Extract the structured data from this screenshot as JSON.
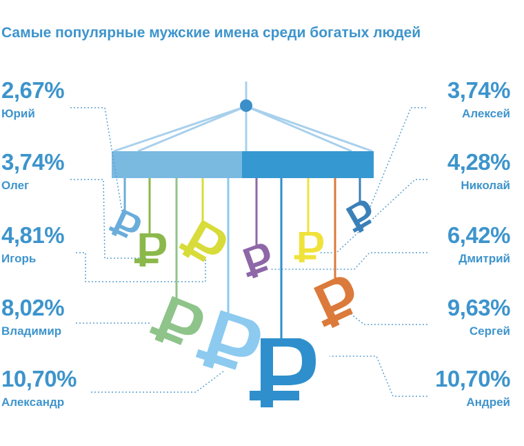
{
  "title": "Самые популярные мужские имена среди богатых людей",
  "colors": {
    "accent": "#3d94cc",
    "bar_left": "#7ab9e0",
    "bar_right": "#3598d0",
    "string": "#a8d0ec",
    "connector": "#5a9fd0"
  },
  "icon": "ruble-sign",
  "chart_data": {
    "type": "mobile-infographic",
    "title": "Самые популярные мужские имена среди богатых людей",
    "unit": "%",
    "items": [
      {
        "name": "Юрий",
        "value": 2.67,
        "label": "2,67%",
        "side": "left",
        "color": "#6aaddb"
      },
      {
        "name": "Олег",
        "value": 3.74,
        "label": "3,74%",
        "side": "left",
        "color": "#8bb84a"
      },
      {
        "name": "Игорь",
        "value": 4.81,
        "label": "4,81%",
        "side": "left",
        "color": "#d8dc3a"
      },
      {
        "name": "Владимир",
        "value": 8.02,
        "label": "8,02%",
        "side": "left",
        "color": "#8ec48a"
      },
      {
        "name": "Александр",
        "value": 10.7,
        "label": "10,70%",
        "side": "left",
        "color": "#8ccaf0"
      },
      {
        "name": "Алексей",
        "value": 3.74,
        "label": "3,74%",
        "side": "right",
        "color": "#3b80b8"
      },
      {
        "name": "Николай",
        "value": 4.28,
        "label": "4,28%",
        "side": "right",
        "color": "#f0e23a"
      },
      {
        "name": "Дмитрий",
        "value": 6.42,
        "label": "6,42%",
        "side": "right",
        "color": "#8e67a8"
      },
      {
        "name": "Сергей",
        "value": 9.63,
        "label": "9,63%",
        "side": "right",
        "color": "#db7a3a"
      },
      {
        "name": "Андрей",
        "value": 10.7,
        "label": "10,70%",
        "side": "right",
        "color": "#2e8fcc"
      }
    ]
  }
}
